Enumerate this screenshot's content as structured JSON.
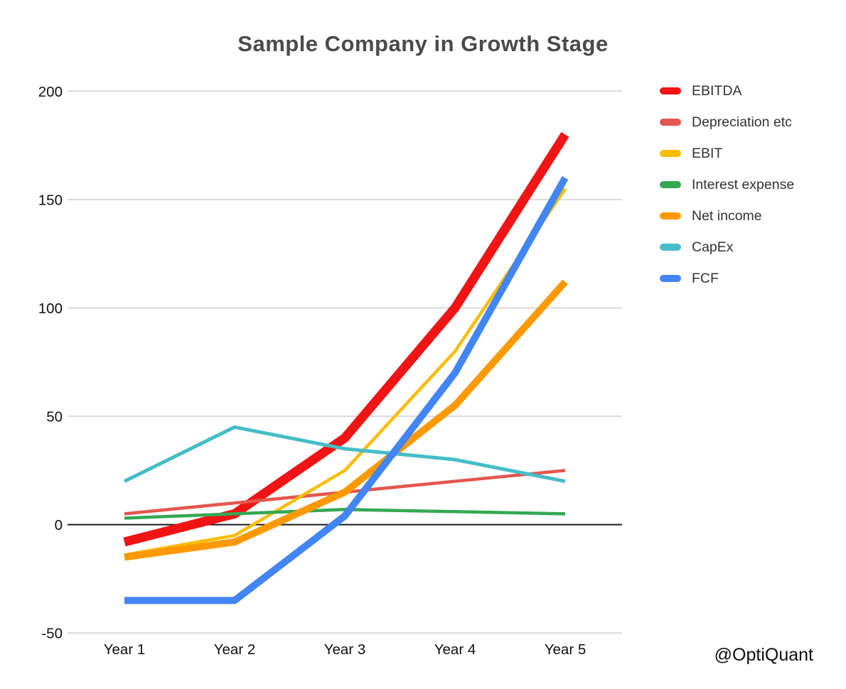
{
  "title": "Sample Company in Growth Stage",
  "watermark": "@OptiQuant",
  "colors": {
    "title_text": "#4a4a4a",
    "gridline": "#dadada",
    "zero_axis": "#1a1a1a",
    "tick_label": "#111111",
    "legend_label": "#333333",
    "background": "#ffffff"
  },
  "chart_data": {
    "type": "line",
    "title": "Sample Company in Growth Stage",
    "categories": [
      "Year 1",
      "Year 2",
      "Year 3",
      "Year 4",
      "Year 5"
    ],
    "series": [
      {
        "name": "EBITDA",
        "color": "#F01414",
        "line_width": 13,
        "values": [
          -8,
          5,
          40,
          100,
          180
        ]
      },
      {
        "name": "Depreciation etc",
        "color": "#E4564F",
        "line_width": 4.5,
        "values": [
          5,
          10,
          15,
          20,
          25
        ]
      },
      {
        "name": "EBIT",
        "color": "#FBBC04",
        "line_width": 4.5,
        "values": [
          -14,
          -5,
          25,
          80,
          155
        ]
      },
      {
        "name": "Interest expense",
        "color": "#34A853",
        "line_width": 4.5,
        "values": [
          3,
          5,
          7,
          6,
          5
        ]
      },
      {
        "name": "Net income",
        "color": "#FF9900",
        "line_width": 10,
        "values": [
          -15,
          -8,
          15,
          55,
          112
        ]
      },
      {
        "name": "CapEx",
        "color": "#46BDC6",
        "line_width": 5,
        "values": [
          20,
          45,
          35,
          30,
          20
        ]
      },
      {
        "name": "FCF",
        "color": "#4285F4",
        "line_width": 10,
        "values": [
          -35,
          -35,
          4,
          70,
          160
        ]
      }
    ],
    "xlabel": "",
    "ylabel": "",
    "ylim": [
      -50,
      200
    ],
    "yticks": [
      200,
      150,
      100,
      50,
      0,
      -50
    ],
    "grid": true,
    "zero_axis_highlighted": true,
    "legend_position": "right"
  }
}
